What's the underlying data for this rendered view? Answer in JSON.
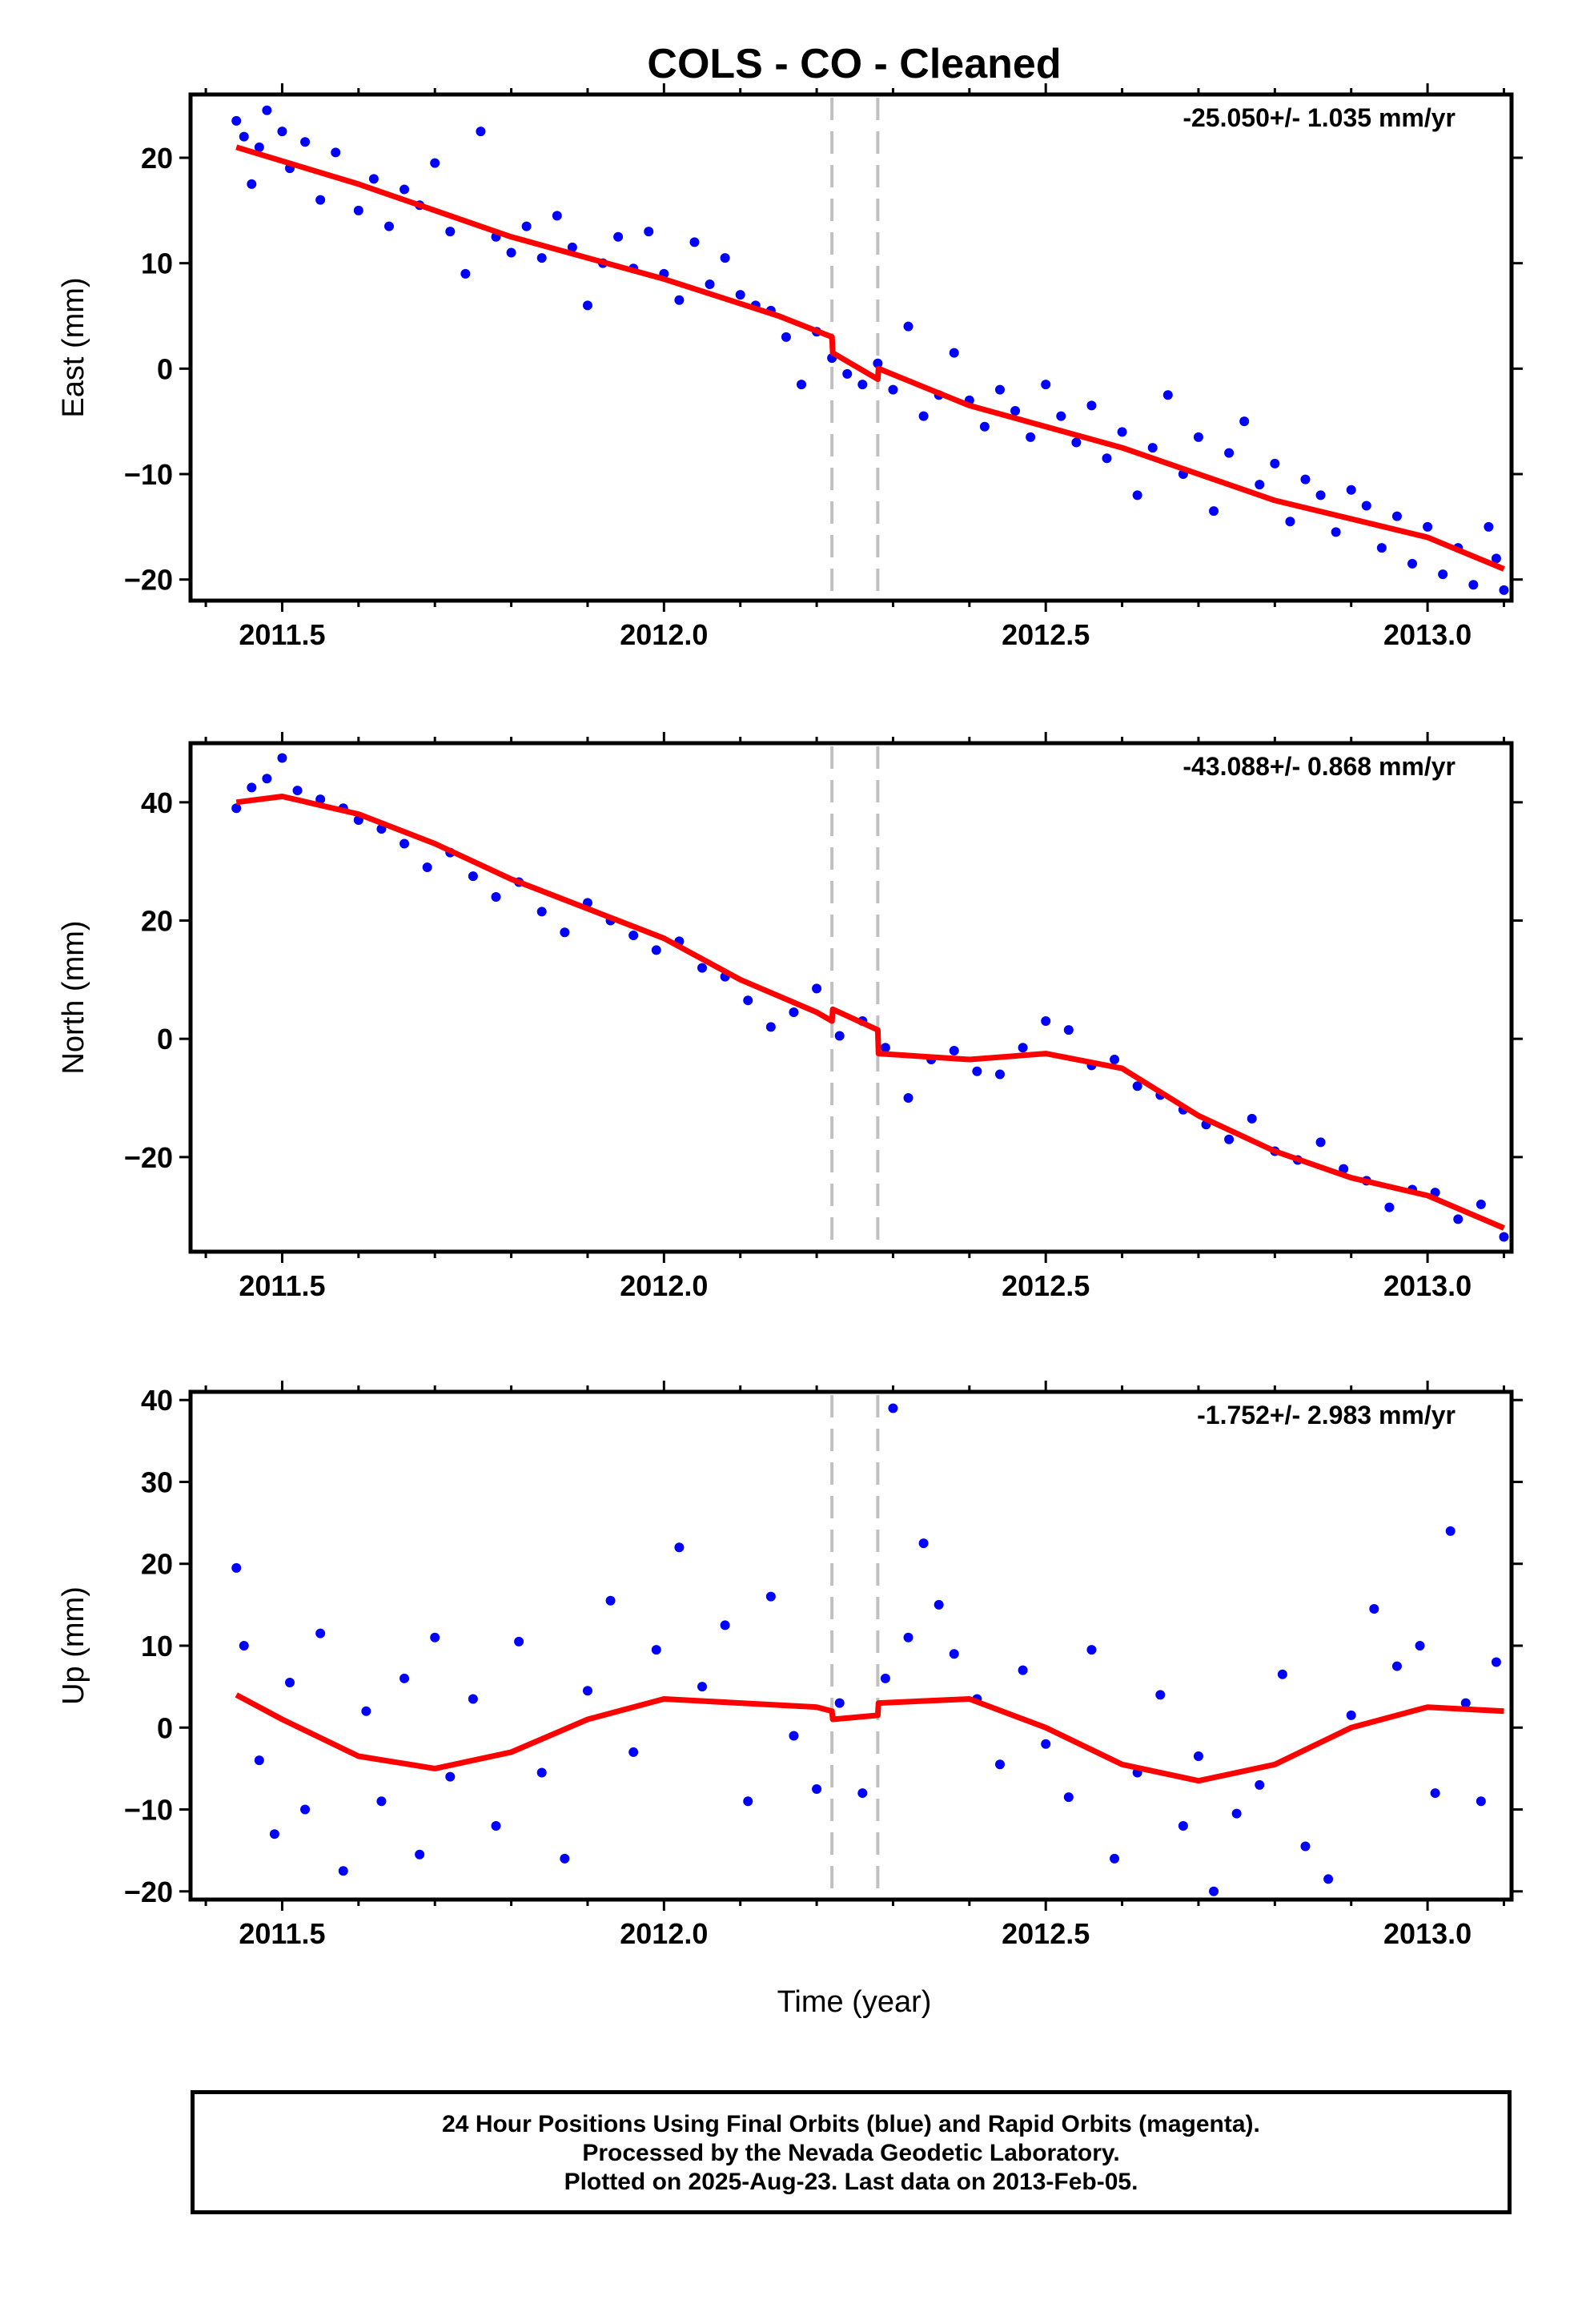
{
  "title": "COLS  - CO - Cleaned",
  "xlabel": "Time (year)",
  "x_tick_labels": [
    "2011.5",
    "2012.0",
    "2012.5",
    "2013.0"
  ],
  "footer": {
    "line1": "24 Hour Positions Using Final Orbits (blue) and Rapid Orbits (magenta).",
    "line2": "Processed by the Nevada Geodetic Laboratory.",
    "line3": "Plotted on 2025-Aug-23. Last data on 2013-Feb-05."
  },
  "colors": {
    "points": "#0000ff",
    "model": "#ff0000",
    "events": "#c0c0c0",
    "frame": "#000000"
  },
  "chart_data": [
    {
      "type": "scatter",
      "ylabel": "East (mm)",
      "rate_label": "-25.050+/- 1.035 mm/yr",
      "xlim": [
        2011.38,
        2013.11
      ],
      "ylim": [
        -22,
        26
      ],
      "y_ticks": [
        -20,
        -10,
        0,
        10,
        20
      ],
      "y_tick_labels": [
        "−20",
        "−10",
        "0",
        "10",
        "20"
      ],
      "events": [
        2012.22,
        2012.28
      ],
      "series": [
        {
          "kind": "model",
          "x": [
            2011.44,
            2011.6,
            2011.8,
            2012.0,
            2012.15,
            2012.22,
            2012.221,
            2012.28,
            2012.281,
            2012.4,
            2012.6,
            2012.8,
            2013.0,
            2013.1
          ],
          "y": [
            21.0,
            17.5,
            12.5,
            8.5,
            5.0,
            3.0,
            1.5,
            -1.0,
            0.0,
            -3.5,
            -7.5,
            -12.5,
            -16.0,
            -19.0
          ]
        },
        {
          "kind": "observations",
          "x": [
            2011.44,
            2011.45,
            2011.46,
            2011.47,
            2011.48,
            2011.5,
            2011.51,
            2011.53,
            2011.55,
            2011.57,
            2011.6,
            2011.62,
            2011.64,
            2011.66,
            2011.68,
            2011.7,
            2011.72,
            2011.74,
            2011.76,
            2011.78,
            2011.8,
            2011.82,
            2011.84,
            2011.86,
            2011.88,
            2011.9,
            2011.92,
            2011.94,
            2011.96,
            2011.98,
            2012.0,
            2012.02,
            2012.04,
            2012.06,
            2012.08,
            2012.1,
            2012.12,
            2012.14,
            2012.16,
            2012.18,
            2012.2,
            2012.22,
            2012.24,
            2012.26,
            2012.28,
            2012.3,
            2012.32,
            2012.34,
            2012.36,
            2012.38,
            2012.4,
            2012.42,
            2012.44,
            2012.46,
            2012.48,
            2012.5,
            2012.52,
            2012.54,
            2012.56,
            2012.58,
            2012.6,
            2012.62,
            2012.64,
            2012.66,
            2012.68,
            2012.7,
            2012.72,
            2012.74,
            2012.76,
            2012.78,
            2012.8,
            2012.82,
            2012.84,
            2012.86,
            2012.88,
            2012.9,
            2012.92,
            2012.94,
            2012.96,
            2012.98,
            2013.0,
            2013.02,
            2013.04,
            2013.06,
            2013.08,
            2013.09,
            2013.1
          ],
          "y": [
            23.5,
            22.0,
            17.5,
            21.0,
            24.5,
            22.5,
            19.0,
            21.5,
            16.0,
            20.5,
            15.0,
            18.0,
            13.5,
            17.0,
            15.5,
            19.5,
            13.0,
            9.0,
            22.5,
            12.5,
            11.0,
            13.5,
            10.5,
            14.5,
            11.5,
            6.0,
            10.0,
            12.5,
            9.5,
            13.0,
            9.0,
            6.5,
            12.0,
            8.0,
            10.5,
            7.0,
            6.0,
            5.5,
            3.0,
            -1.5,
            3.5,
            1.0,
            -0.5,
            -1.5,
            0.5,
            -2.0,
            4.0,
            -4.5,
            -2.5,
            1.5,
            -3.0,
            -5.5,
            -2.0,
            -4.0,
            -6.5,
            -1.5,
            -4.5,
            -7.0,
            -3.5,
            -8.5,
            -6.0,
            -12.0,
            -7.5,
            -2.5,
            -10.0,
            -6.5,
            -13.5,
            -8.0,
            -5.0,
            -11.0,
            -9.0,
            -14.5,
            -10.5,
            -12.0,
            -15.5,
            -11.5,
            -13.0,
            -17.0,
            -14.0,
            -18.5,
            -15.0,
            -19.5,
            -17.0,
            -20.5,
            -15.0,
            -18.0,
            -21.0
          ]
        }
      ]
    },
    {
      "type": "scatter",
      "ylabel": "North (mm)",
      "rate_label": "-43.088+/- 0.868 mm/yr",
      "xlim": [
        2011.38,
        2013.11
      ],
      "ylim": [
        -36,
        50
      ],
      "y_ticks": [
        -20,
        0,
        20,
        40
      ],
      "y_tick_labels": [
        "−20",
        "0",
        "20",
        "40"
      ],
      "events": [
        2012.22,
        2012.28
      ],
      "series": [
        {
          "kind": "model",
          "x": [
            2011.44,
            2011.5,
            2011.6,
            2011.7,
            2011.8,
            2011.9,
            2012.0,
            2012.1,
            2012.2,
            2012.22,
            2012.221,
            2012.28,
            2012.281,
            2012.4,
            2012.5,
            2012.6,
            2012.7,
            2012.8,
            2012.9,
            2013.0,
            2013.1
          ],
          "y": [
            40.0,
            41.0,
            38.0,
            33.0,
            27.0,
            22.0,
            17.0,
            10.0,
            4.5,
            3.0,
            5.0,
            1.5,
            -2.5,
            -3.5,
            -2.5,
            -5.0,
            -13.0,
            -19.0,
            -23.5,
            -26.5,
            -32.0
          ]
        },
        {
          "kind": "observations",
          "x": [
            2011.44,
            2011.46,
            2011.48,
            2011.5,
            2011.52,
            2011.55,
            2011.58,
            2011.6,
            2011.63,
            2011.66,
            2011.69,
            2011.72,
            2011.75,
            2011.78,
            2011.81,
            2011.84,
            2011.87,
            2011.9,
            2011.93,
            2011.96,
            2011.99,
            2012.02,
            2012.05,
            2012.08,
            2012.11,
            2012.14,
            2012.17,
            2012.2,
            2012.23,
            2012.26,
            2012.29,
            2012.32,
            2012.35,
            2012.38,
            2012.41,
            2012.44,
            2012.47,
            2012.5,
            2012.53,
            2012.56,
            2012.59,
            2012.62,
            2012.65,
            2012.68,
            2012.71,
            2012.74,
            2012.77,
            2012.8,
            2012.83,
            2012.86,
            2012.89,
            2012.92,
            2012.95,
            2012.98,
            2013.01,
            2013.04,
            2013.07,
            2013.1
          ],
          "y": [
            39.0,
            42.5,
            44.0,
            47.5,
            42.0,
            40.5,
            39.0,
            37.0,
            35.5,
            33.0,
            29.0,
            31.5,
            27.5,
            24.0,
            26.5,
            21.5,
            18.0,
            23.0,
            20.0,
            17.5,
            15.0,
            16.5,
            12.0,
            10.5,
            6.5,
            2.0,
            4.5,
            8.5,
            0.5,
            3.0,
            -1.5,
            -10.0,
            -3.5,
            -2.0,
            -5.5,
            -6.0,
            -1.5,
            3.0,
            1.5,
            -4.5,
            -3.5,
            -8.0,
            -9.5,
            -12.0,
            -14.5,
            -17.0,
            -13.5,
            -19.0,
            -20.5,
            -17.5,
            -22.0,
            -24.0,
            -28.5,
            -25.5,
            -26.0,
            -30.5,
            -28.0,
            -33.5
          ]
        }
      ]
    },
    {
      "type": "scatter",
      "ylabel": "Up (mm)",
      "rate_label": "-1.752+/- 2.983 mm/yr",
      "xlim": [
        2011.38,
        2013.11
      ],
      "ylim": [
        -21,
        41
      ],
      "y_ticks": [
        -20,
        -10,
        0,
        10,
        20,
        30,
        40
      ],
      "y_tick_labels": [
        "−20",
        "−10",
        "0",
        "10",
        "20",
        "30",
        "40"
      ],
      "events": [
        2012.22,
        2012.28
      ],
      "series": [
        {
          "kind": "model",
          "x": [
            2011.44,
            2011.5,
            2011.6,
            2011.7,
            2011.8,
            2011.9,
            2012.0,
            2012.1,
            2012.2,
            2012.22,
            2012.221,
            2012.28,
            2012.281,
            2012.4,
            2012.5,
            2012.6,
            2012.7,
            2012.8,
            2012.9,
            2013.0,
            2013.1
          ],
          "y": [
            4.0,
            1.0,
            -3.5,
            -5.0,
            -3.0,
            1.0,
            3.5,
            3.0,
            2.5,
            2.0,
            1.0,
            1.5,
            3.0,
            3.5,
            0.0,
            -4.5,
            -6.5,
            -4.5,
            0.0,
            2.5,
            2.0
          ]
        },
        {
          "kind": "observations",
          "x": [
            2011.44,
            2011.45,
            2011.47,
            2011.49,
            2011.51,
            2011.53,
            2011.55,
            2011.58,
            2011.61,
            2011.63,
            2011.66,
            2011.68,
            2011.7,
            2011.72,
            2011.75,
            2011.78,
            2011.81,
            2011.84,
            2011.87,
            2011.9,
            2011.93,
            2011.96,
            2011.99,
            2012.02,
            2012.05,
            2012.08,
            2012.11,
            2012.14,
            2012.17,
            2012.2,
            2012.23,
            2012.26,
            2012.29,
            2012.3,
            2012.32,
            2012.34,
            2012.36,
            2012.38,
            2012.41,
            2012.44,
            2012.47,
            2012.5,
            2012.53,
            2012.56,
            2012.59,
            2012.62,
            2012.65,
            2012.68,
            2012.7,
            2012.72,
            2012.75,
            2012.78,
            2012.81,
            2012.84,
            2012.87,
            2012.9,
            2012.93,
            2012.96,
            2012.99,
            2013.01,
            2013.03,
            2013.05,
            2013.07,
            2013.09
          ],
          "y": [
            19.5,
            10.0,
            -4.0,
            -13.0,
            5.5,
            -10.0,
            11.5,
            -17.5,
            2.0,
            -9.0,
            6.0,
            -15.5,
            11.0,
            -6.0,
            3.5,
            -12.0,
            10.5,
            -5.5,
            -16.0,
            4.5,
            15.5,
            -3.0,
            9.5,
            22.0,
            5.0,
            12.5,
            -9.0,
            16.0,
            -1.0,
            -7.5,
            3.0,
            -8.0,
            6.0,
            39.0,
            11.0,
            22.5,
            15.0,
            9.0,
            3.5,
            -4.5,
            7.0,
            -2.0,
            -8.5,
            9.5,
            -16.0,
            -5.5,
            4.0,
            -12.0,
            -3.5,
            -20.0,
            -10.5,
            -7.0,
            6.5,
            -14.5,
            -18.5,
            1.5,
            14.5,
            7.5,
            10.0,
            -8.0,
            24.0,
            3.0,
            -9.0,
            8.0
          ]
        }
      ]
    }
  ]
}
